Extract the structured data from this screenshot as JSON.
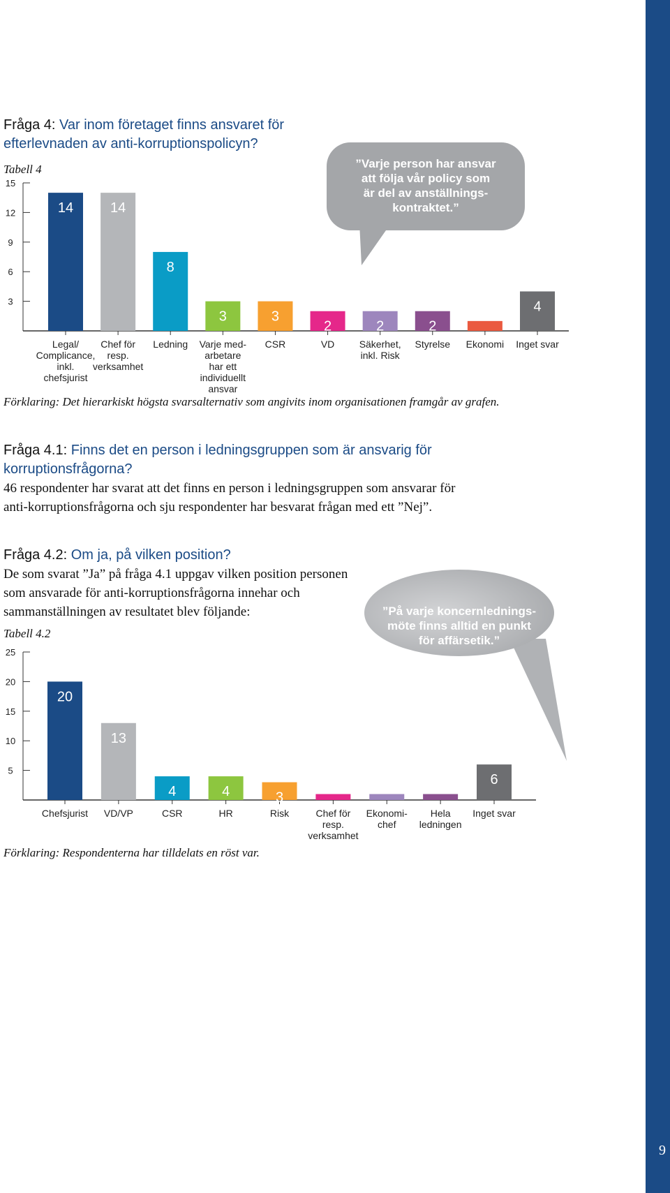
{
  "page": {
    "number": "9",
    "sidebar_color": "#1b4b86"
  },
  "q4": {
    "prefix": "Fråga 4:",
    "line1": "Var inom företaget finns ansvaret för",
    "line2": "efterlevnaden av anti-korruptionspolicyn?",
    "table_label": "Tabell 4",
    "note": "Förklaring: Det hierarkiskt högsta svarsalternativ som angivits inom organisationen framgår av grafen.",
    "bubble": [
      "”Varje person har ansvar",
      "att följa vår policy som",
      "är del av anställnings-",
      "kontraktet.”"
    ]
  },
  "q41": {
    "prefix": "Fråga 4.1:",
    "line1": "Finns det en person i ledningsgruppen som är ansvarig för",
    "line2": "korruptionsfrågorna?",
    "body1": "46 respondenter har svarat att det finns en person i ledningsgruppen som ansvarar för",
    "body2": "anti-korruptionsfrågorna och sju respondenter har besvarat frågan med ett ”Nej”."
  },
  "q42": {
    "prefix": "Fråga 4.2:",
    "question": "Om ja, på vilken position?",
    "body1": "De som svarat ”Ja” på fråga 4.1 uppgav vilken position personen",
    "body2": "som ansvarade för anti-korruptionsfrågorna innehar och",
    "body3": "sammanställningen av resultatet blev följande:",
    "table_label": "Tabell 4.2",
    "note": "Förklaring: Respondenterna har tilldelats en röst var.",
    "bubble": [
      "”På varje koncernlednings-",
      "möte finns alltid en punkt",
      "för affärsetik.”"
    ]
  },
  "chart_data": [
    {
      "type": "bar",
      "title": "Tabell 4",
      "ylim": [
        0,
        15
      ],
      "yticks": [
        3,
        6,
        9,
        12,
        15
      ],
      "grid": false,
      "categories": [
        [
          "Legal/",
          "Complicance,",
          "inkl.",
          "chefsjurist"
        ],
        [
          "Chef för",
          "resp.",
          "verksamhet"
        ],
        [
          "Ledning"
        ],
        [
          "Varje med-",
          "arbetare",
          "har ett",
          "individuellt",
          "ansvar"
        ],
        [
          "CSR"
        ],
        [
          "VD"
        ],
        [
          "Säkerhet,",
          "inkl. Risk"
        ],
        [
          "Styrelse"
        ],
        [
          "Ekonomi"
        ],
        [
          "Inget svar"
        ]
      ],
      "values": [
        14,
        14,
        8,
        3,
        3,
        2,
        2,
        2,
        1,
        4
      ],
      "data_labels": [
        "14",
        "14",
        "8",
        "3",
        "3",
        "2",
        "2",
        "2",
        "",
        "4"
      ],
      "colors": [
        "#1b4b86",
        "#b4b6b9",
        "#0a9cc6",
        "#8dc63f",
        "#f7a030",
        "#e5278a",
        "#9d86bd",
        "#8a4f8e",
        "#ea5a40",
        "#6d6e71"
      ]
    },
    {
      "type": "bar",
      "title": "Tabell 4.2",
      "ylim": [
        0,
        25
      ],
      "yticks": [
        5,
        10,
        15,
        20,
        25
      ],
      "grid": false,
      "categories": [
        [
          "Chefsjurist"
        ],
        [
          "VD/VP"
        ],
        [
          "CSR"
        ],
        [
          "HR"
        ],
        [
          "Risk"
        ],
        [
          "Chef för",
          "resp.",
          "verksamhet"
        ],
        [
          "Ekonomi-",
          "chef"
        ],
        [
          "Hela",
          "ledningen"
        ],
        [
          "Inget svar"
        ]
      ],
      "values": [
        20,
        13,
        4,
        4,
        3,
        1,
        1,
        1,
        6
      ],
      "data_labels": [
        "20",
        "13",
        "4",
        "4",
        "3",
        "",
        "",
        "",
        "6"
      ],
      "colors": [
        "#1b4b86",
        "#b4b6b9",
        "#0a9cc6",
        "#8dc63f",
        "#f7a030",
        "#e5278a",
        "#9d86bd",
        "#8a4f8e",
        "#6d6e71"
      ]
    }
  ]
}
